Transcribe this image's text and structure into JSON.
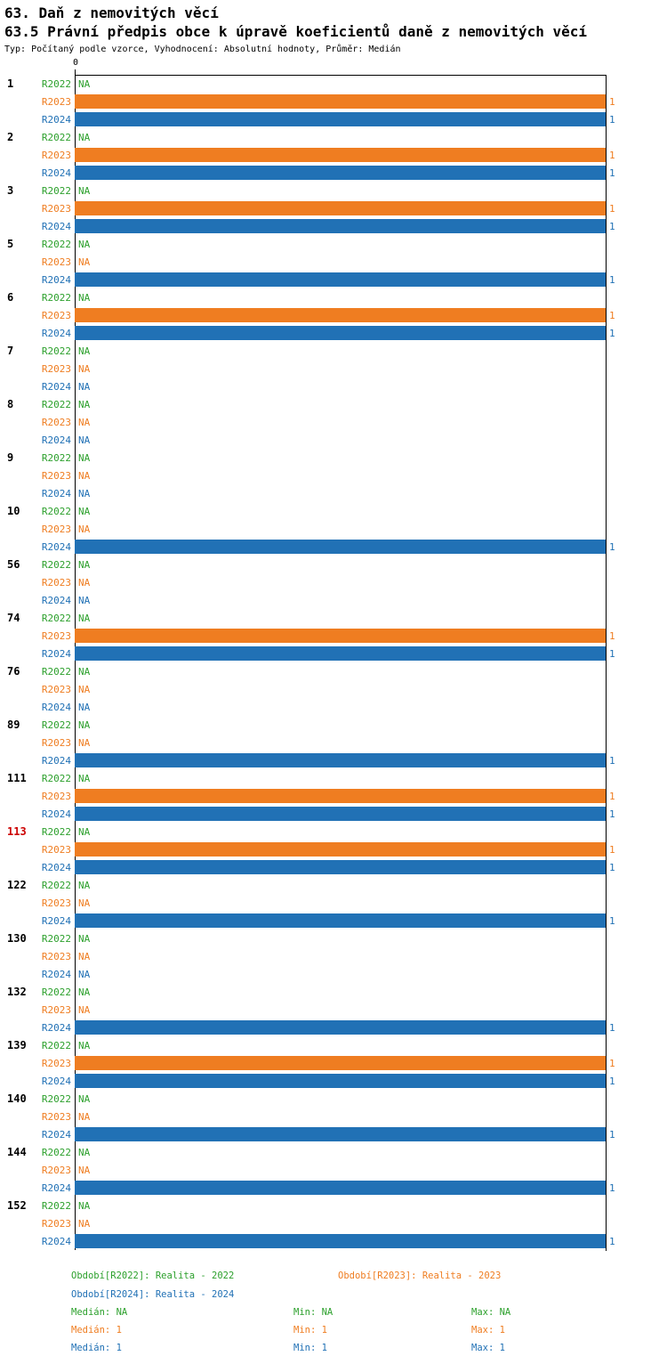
{
  "header": {
    "title": "63. Daň z nemovitých věcí",
    "subtitle": "63.5 Právní předpis obce k úpravě koeficientů daně z nemovitých věcí",
    "meta": "Typ: Počítaný podle vzorce, Vyhodnocení: Absolutní hodnoty, Průměr: Medián"
  },
  "colors": {
    "highlight_group": "#CC0000",
    "axis": "#000000",
    "background": "#FFFFFF"
  },
  "chart_data": {
    "type": "bar",
    "orientation": "horizontal",
    "title": "63. Daň z nemovitých věcí",
    "subtitle": "63.5 Právní předpis obce k úpravě koeficientů daně z nemovitých věcí",
    "note": "Typ: Počítaný podle vzorce, Vyhodnocení: Absolutní hodnoty, Průměr: Medián",
    "xlim": [
      0,
      1
    ],
    "x_tick_labels": [
      "0"
    ],
    "na_label": "NA",
    "legend_position": "bottom",
    "series": [
      {
        "key": "R2022",
        "label": "R2022",
        "color": "#2CA02C"
      },
      {
        "key": "R2023",
        "label": "R2023",
        "color": "#EF7D21"
      },
      {
        "key": "R2024",
        "label": "R2024",
        "color": "#2171B5"
      }
    ],
    "groups": [
      {
        "id": "1",
        "highlight": false,
        "values": [
          null,
          1,
          1
        ]
      },
      {
        "id": "2",
        "highlight": false,
        "values": [
          null,
          1,
          1
        ]
      },
      {
        "id": "3",
        "highlight": false,
        "values": [
          null,
          1,
          1
        ]
      },
      {
        "id": "5",
        "highlight": false,
        "values": [
          null,
          null,
          1
        ]
      },
      {
        "id": "6",
        "highlight": false,
        "values": [
          null,
          1,
          1
        ]
      },
      {
        "id": "7",
        "highlight": false,
        "values": [
          null,
          null,
          null
        ]
      },
      {
        "id": "8",
        "highlight": false,
        "values": [
          null,
          null,
          null
        ]
      },
      {
        "id": "9",
        "highlight": false,
        "values": [
          null,
          null,
          null
        ]
      },
      {
        "id": "10",
        "highlight": false,
        "values": [
          null,
          null,
          1
        ]
      },
      {
        "id": "56",
        "highlight": false,
        "values": [
          null,
          null,
          null
        ]
      },
      {
        "id": "74",
        "highlight": false,
        "values": [
          null,
          1,
          1
        ]
      },
      {
        "id": "76",
        "highlight": false,
        "values": [
          null,
          null,
          null
        ]
      },
      {
        "id": "89",
        "highlight": false,
        "values": [
          null,
          null,
          1
        ]
      },
      {
        "id": "111",
        "highlight": false,
        "values": [
          null,
          1,
          1
        ]
      },
      {
        "id": "113",
        "highlight": true,
        "values": [
          null,
          1,
          1
        ]
      },
      {
        "id": "122",
        "highlight": false,
        "values": [
          null,
          null,
          1
        ]
      },
      {
        "id": "130",
        "highlight": false,
        "values": [
          null,
          null,
          null
        ]
      },
      {
        "id": "132",
        "highlight": false,
        "values": [
          null,
          null,
          1
        ]
      },
      {
        "id": "139",
        "highlight": false,
        "values": [
          null,
          1,
          1
        ]
      },
      {
        "id": "140",
        "highlight": false,
        "values": [
          null,
          null,
          1
        ]
      },
      {
        "id": "144",
        "highlight": false,
        "values": [
          null,
          null,
          1
        ]
      },
      {
        "id": "152",
        "highlight": false,
        "values": [
          null,
          null,
          1
        ]
      }
    ]
  },
  "legend": {
    "items": [
      {
        "series": "R2022",
        "text": "Období[R2022]: Realita - 2022"
      },
      {
        "series": "R2023",
        "text": "Období[R2023]: Realita - 2023"
      },
      {
        "series": "R2024",
        "text": "Období[R2024]: Realita - 2024"
      }
    ]
  },
  "stats": {
    "labels": {
      "median": "Medián",
      "min": "Min",
      "max": "Max"
    },
    "rows": [
      {
        "series": "R2022",
        "median": "NA",
        "min": "NA",
        "max": "NA"
      },
      {
        "series": "R2023",
        "median": "1",
        "min": "1",
        "max": "1"
      },
      {
        "series": "R2024",
        "median": "1",
        "min": "1",
        "max": "1"
      }
    ]
  }
}
